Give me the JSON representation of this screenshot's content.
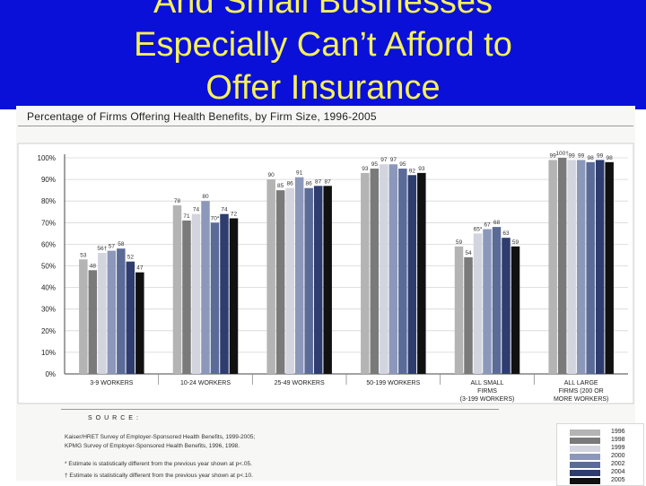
{
  "slide": {
    "title_lines": [
      "And Small Businesses",
      "Especially Can’t Afford to",
      "Offer Insurance"
    ]
  },
  "chart_data": {
    "type": "bar",
    "title": "Percentage of Firms Offering Health Benefits, by Firm Size, 1996-2005",
    "ylim": [
      0,
      100
    ],
    "yticks": [
      "0%",
      "10%",
      "20%",
      "30%",
      "40%",
      "50%",
      "60%",
      "70%",
      "80%",
      "90%",
      "100%"
    ],
    "categories": [
      "3-9 WORKERS",
      "10-24 WORKERS",
      "25-49 WORKERS",
      "50-199 WORKERS",
      "ALL SMALL FIRMS (3-199 WORKERS)",
      "ALL LARGE FIRMS (200 OR MORE WORKERS)"
    ],
    "category_lines": [
      [
        "3-9 WORKERS"
      ],
      [
        "10-24 WORKERS"
      ],
      [
        "25-49 WORKERS"
      ],
      [
        "50-199 WORKERS"
      ],
      [
        "ALL SMALL",
        "FIRMS",
        "(3-199 WORKERS)"
      ],
      [
        "ALL LARGE",
        "FIRMS (200 OR",
        "MORE WORKERS)"
      ]
    ],
    "series": [
      {
        "name": "1996",
        "color": "#b4b4b4",
        "values": [
          53,
          78,
          90,
          93,
          59,
          99
        ],
        "labels": [
          "53",
          "78",
          "90",
          "93",
          "59",
          "99"
        ]
      },
      {
        "name": "1998",
        "color": "#7a7a7a",
        "values": [
          48,
          71,
          85,
          95,
          54,
          100
        ],
        "labels": [
          "48",
          "71",
          "85",
          "95",
          "54",
          "100†"
        ]
      },
      {
        "name": "1999",
        "color": "#d2d4de",
        "values": [
          56,
          74,
          86,
          97,
          65,
          99
        ],
        "labels": [
          "56†",
          "74",
          "86",
          "97",
          "65*",
          "99"
        ]
      },
      {
        "name": "2000",
        "color": "#8c98ba",
        "values": [
          57,
          80,
          91,
          97,
          67,
          99
        ],
        "labels": [
          "57",
          "80",
          "91",
          "97",
          "67",
          "99"
        ]
      },
      {
        "name": "2002",
        "color": "#5b6b98",
        "values": [
          58,
          70,
          86,
          95,
          68,
          98
        ],
        "labels": [
          "58",
          "70*",
          "86",
          "95",
          "68",
          "98"
        ]
      },
      {
        "name": "2004",
        "color": "#2e3d6e",
        "values": [
          52,
          74,
          87,
          92,
          63,
          99
        ],
        "labels": [
          "52",
          "74",
          "87",
          "92",
          "63",
          "99"
        ]
      },
      {
        "name": "2005",
        "color": "#111111",
        "values": [
          47,
          72,
          87,
          93,
          59,
          98
        ],
        "labels": [
          "47",
          "72",
          "87",
          "93",
          "59",
          "98"
        ]
      }
    ],
    "legend_position": "bottom-right"
  },
  "source": {
    "heading": "SOURCE:",
    "lines": [
      "Kaiser/HRET Survey of Employer-Sponsored Health Benefits, 1999-2005;",
      "KPMG Survey of Employer-Sponsored Health Benefits, 1996, 1998."
    ],
    "notes": [
      "* Estimate is statistically different from the previous year shown at p<.05.",
      "† Estimate is statistically different from the previous year shown at p<.10."
    ]
  }
}
